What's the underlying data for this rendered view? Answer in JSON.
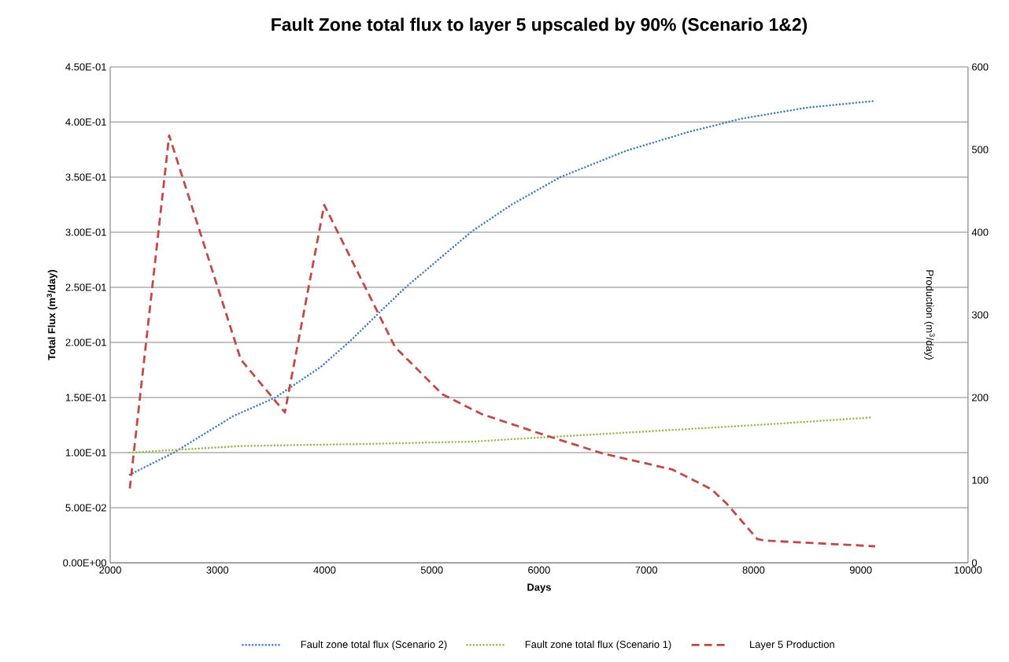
{
  "chart_data": {
    "type": "line",
    "title": "Fault Zone total flux to layer 5 upscaled by 90% (Scenario 1&2)",
    "xlabel": "Days",
    "ylabel": "Total Flux (m$^{3}$/day)",
    "y2label": "Production (m$^{3}$/day)",
    "xlim": [
      2000,
      10000
    ],
    "xticks": [
      2000,
      3000,
      4000,
      5000,
      6000,
      7000,
      8000,
      9000,
      10000
    ],
    "ylim": [
      0,
      0.45
    ],
    "yticks": [
      {
        "value": 0,
        "label": "0.00E+00"
      },
      {
        "value": 0.05,
        "label": "5.00E-02"
      },
      {
        "value": 0.1,
        "label": "1.00E-01"
      },
      {
        "value": 0.15,
        "label": "1.50E-01"
      },
      {
        "value": 0.2,
        "label": "2.00E-01"
      },
      {
        "value": 0.25,
        "label": "2.50E-01"
      },
      {
        "value": 0.3,
        "label": "3.00E-01"
      },
      {
        "value": 0.35,
        "label": "3.50E-01"
      },
      {
        "value": 0.4,
        "label": "4.00E-01"
      },
      {
        "value": 0.45,
        "label": "4.50E-01"
      }
    ],
    "y2lim": [
      0,
      600
    ],
    "y2ticks": [
      0,
      100,
      200,
      300,
      400,
      500,
      600
    ],
    "grid": "y",
    "legend": "bottom",
    "marker": "none",
    "series": [
      {
        "name": "Fault zone total flux (Scenario 2)",
        "color": "#4a7ebb",
        "line_style": "dotted",
        "x": [
          2183,
          2594,
          3145,
          3541,
          3967,
          4246,
          4519,
          4767,
          5376,
          5743,
          6198,
          6815,
          7394,
          7886,
          8495,
          9119
        ],
        "values": [
          0.08,
          0.1,
          0.133,
          0.15,
          0.178,
          0.202,
          0.228,
          0.251,
          0.301,
          0.325,
          0.35,
          0.374,
          0.391,
          0.403,
          0.413,
          0.419
        ]
      },
      {
        "name": "Fault zone total flux (Scenario 1)",
        "color": "#98b954",
        "line_style": "dotted",
        "x": [
          2183,
          3233,
          4459,
          5376,
          6066,
          6969,
          8187,
          9105
        ],
        "values": [
          0.1,
          0.106,
          0.108,
          0.11,
          0.114,
          0.119,
          0.126,
          0.132
        ]
      },
      {
        "name": "Layer 5 Production",
        "color": "#be4b48",
        "line_style": "dashed",
        "axis": "y2",
        "x": [
          2183,
          2550,
          3218,
          3629,
          3996,
          4657,
          5097,
          5464,
          6066,
          6602,
          7240,
          7607,
          7747,
          8033,
          8099,
          9134
        ],
        "values": [
          90,
          517,
          246,
          182,
          433,
          261,
          204,
          180,
          154,
          132,
          113,
          89,
          72,
          29,
          27,
          20
        ]
      }
    ]
  }
}
